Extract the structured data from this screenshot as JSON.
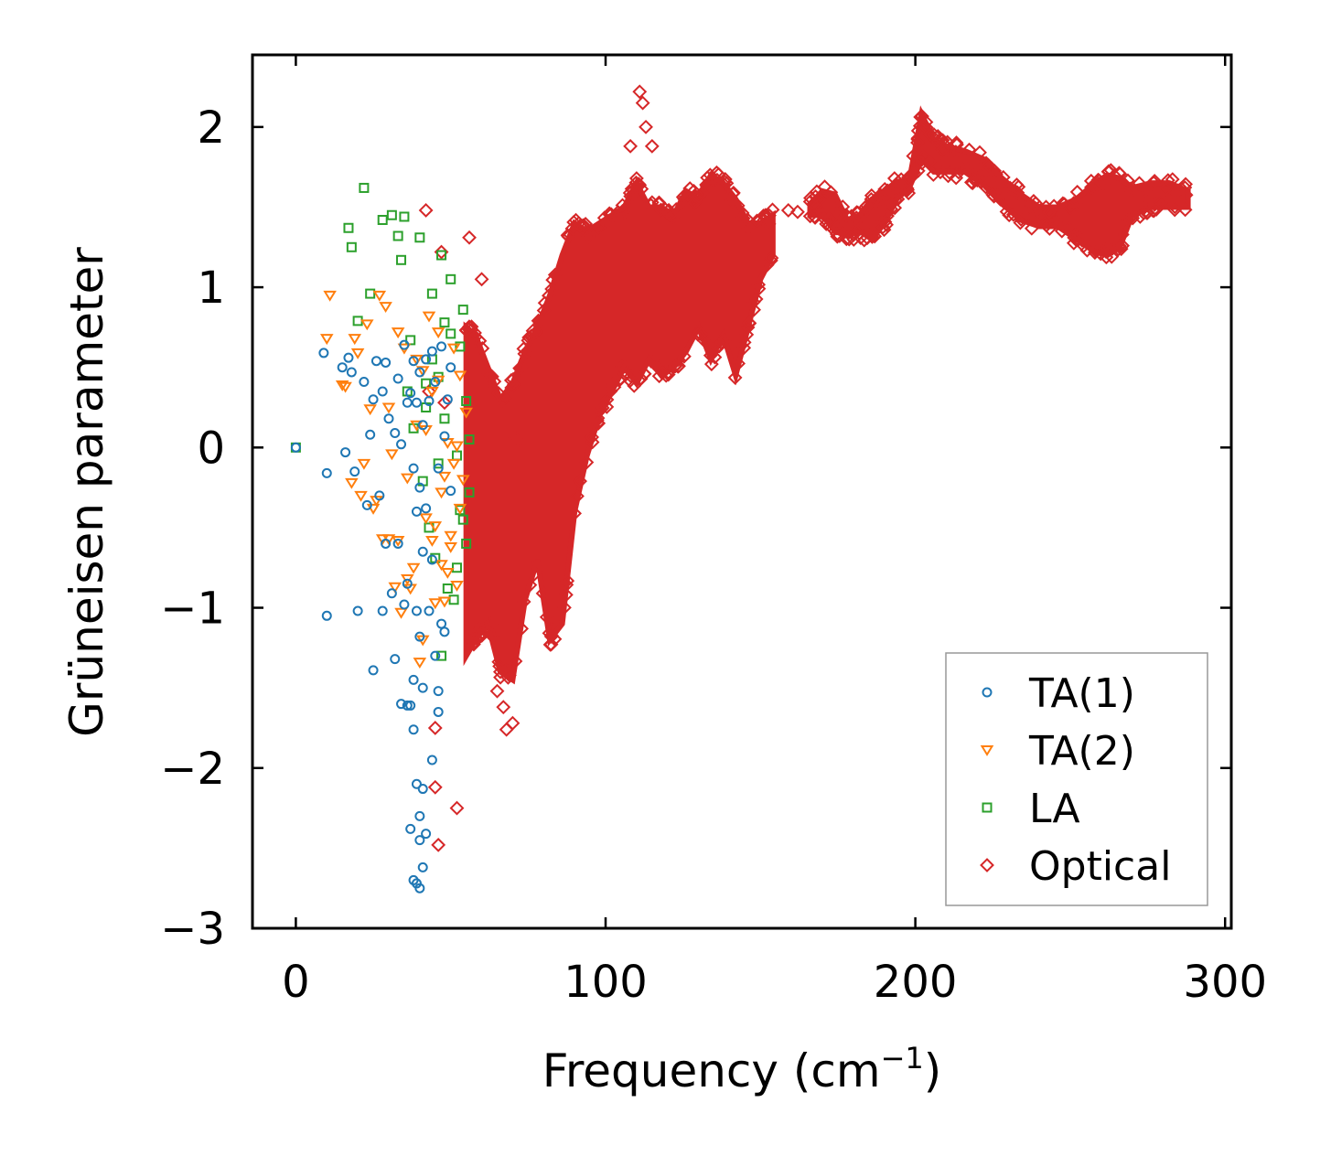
{
  "chart_data": {
    "type": "scatter",
    "title": "",
    "xlabel": "Frequency (cm",
    "xlabel_sup": "−1",
    "xlabel_close": ")",
    "ylabel": "Grüneisen parameter",
    "xlim": [
      -14,
      302
    ],
    "ylim": [
      -3,
      2.45
    ],
    "xticks": [
      0,
      100,
      200,
      300
    ],
    "xtick_labels": [
      "0",
      "100",
      "200",
      "300"
    ],
    "yticks": [
      -3,
      -2,
      -1,
      0,
      1,
      2
    ],
    "ytick_labels": [
      "−3",
      "−2",
      "−1",
      "0",
      "1",
      "2"
    ],
    "grid": false,
    "legend_position": "lower-right",
    "series": [
      {
        "name": "TA(1)",
        "marker": "circle",
        "color": "#1f77b4",
        "x": [
          0,
          9,
          10,
          10,
          15,
          16,
          17,
          18,
          19,
          20,
          22,
          23,
          24,
          25,
          25,
          26,
          27,
          28,
          28,
          29,
          29,
          30,
          31,
          32,
          32,
          33,
          33,
          34,
          34,
          35,
          35,
          36,
          36,
          37,
          37,
          38,
          38,
          38,
          39,
          39,
          39,
          40,
          40,
          40,
          41,
          41,
          41,
          42,
          42,
          43,
          43,
          44,
          44,
          45,
          45,
          46,
          46,
          47,
          47,
          48,
          48,
          49,
          50,
          50,
          38,
          39,
          40,
          40,
          41,
          42,
          37,
          38,
          39,
          40,
          36,
          41,
          44,
          46
        ],
        "y": [
          0,
          0.59,
          -0.16,
          -1.05,
          0.5,
          -0.03,
          0.56,
          0.47,
          -0.15,
          -1.02,
          0.41,
          -0.36,
          0.08,
          -1.39,
          0.3,
          0.54,
          -0.3,
          0.35,
          -1.02,
          -0.6,
          0.53,
          0.18,
          -0.91,
          -1.32,
          0.09,
          -0.6,
          0.43,
          -1.6,
          0.02,
          -0.98,
          0.64,
          -0.85,
          0.28,
          -1.61,
          0.34,
          -1.45,
          -0.13,
          0.54,
          -0.4,
          -1.02,
          0.28,
          -1.18,
          0.47,
          -0.25,
          -0.65,
          0.14,
          -1.5,
          0.55,
          -0.38,
          -1.02,
          0.29,
          -0.7,
          0.6,
          -1.3,
          0.41,
          -0.13,
          -1.65,
          -1.1,
          0.63,
          0.07,
          -1.15,
          0.3,
          -0.27,
          0.5,
          -1.76,
          -2.1,
          -2.3,
          -2.45,
          -2.62,
          -2.41,
          -2.38,
          -2.7,
          -2.72,
          -2.75,
          -1.61,
          -2.13,
          -1.95,
          -1.52
        ]
      },
      {
        "name": "TA(2)",
        "marker": "triangle-down",
        "color": "#ff7f0e",
        "x": [
          10,
          11,
          15,
          16,
          18,
          19,
          20,
          21,
          22,
          23,
          24,
          25,
          26,
          27,
          28,
          29,
          30,
          31,
          32,
          33,
          34,
          35,
          36,
          37,
          38,
          39,
          40,
          41,
          42,
          43,
          44,
          45,
          46,
          47,
          48,
          49,
          50,
          51,
          52,
          53,
          54,
          55,
          30,
          33,
          36,
          39,
          42,
          45,
          48,
          51,
          44,
          47,
          50,
          53,
          41,
          46,
          49,
          52
        ],
        "y": [
          0.68,
          0.95,
          0.39,
          0.38,
          -0.22,
          0.68,
          0.59,
          -0.3,
          -0.1,
          0.77,
          0.24,
          -0.38,
          -0.33,
          0.95,
          -0.57,
          0.88,
          -0.57,
          -0.04,
          -0.87,
          0.72,
          -1.03,
          0.62,
          -0.19,
          -0.88,
          -0.75,
          0.14,
          -1.34,
          0.48,
          -0.44,
          0.82,
          -0.58,
          -0.97,
          0.42,
          -0.73,
          -0.18,
          0.03,
          -0.55,
          0.62,
          -0.86,
          -0.38,
          -0.2,
          0.22,
          0.25,
          -0.58,
          -0.82,
          0.55,
          0.11,
          -0.49,
          -0.96,
          -0.1,
          0.35,
          -0.28,
          -0.62,
          0.45,
          -1.2,
          0.72,
          -0.78,
          0.01
        ]
      },
      {
        "name": "LA",
        "marker": "square",
        "color": "#2ca02c",
        "x": [
          0,
          17,
          18,
          20,
          22,
          24,
          28,
          31,
          33,
          34,
          35,
          37,
          40,
          42,
          44,
          46,
          47,
          48,
          50,
          52,
          53,
          54,
          55,
          56,
          36,
          38,
          41,
          43,
          45,
          47,
          49,
          51,
          53,
          55,
          44,
          46,
          48,
          50,
          52,
          54,
          56,
          42
        ],
        "y": [
          0,
          1.37,
          1.25,
          0.79,
          1.62,
          0.96,
          1.42,
          1.45,
          1.32,
          1.17,
          1.44,
          0.67,
          1.31,
          0.4,
          0.96,
          0.44,
          1.2,
          0.78,
          1.05,
          -0.05,
          0.63,
          0.86,
          0.29,
          -0.28,
          0.35,
          0.12,
          -0.21,
          -0.5,
          -0.69,
          -1.3,
          -0.88,
          -0.95,
          -0.39,
          -0.6,
          0.55,
          -0.1,
          0.18,
          0.71,
          -0.75,
          -0.45,
          0.05,
          0.25
        ]
      },
      {
        "name": "Optical",
        "marker": "diamond",
        "color": "#d62728",
        "x": [
          42,
          45,
          52,
          56,
          60,
          65,
          68,
          70,
          48,
          46,
          47,
          43,
          45,
          55,
          58,
          62,
          66,
          69,
          72,
          63,
          67,
          111,
          112,
          113,
          108,
          115,
          162,
          159
        ],
        "y": [
          1.48,
          -2.12,
          -2.25,
          1.31,
          1.05,
          -1.52,
          -1.76,
          -1.72,
          0.28,
          -2.48,
          1.22,
          0.35,
          -1.75,
          0.73,
          0.69,
          0.42,
          -1.4,
          0.1,
          0.05,
          -1.1,
          -1.62,
          2.22,
          2.15,
          2.0,
          1.88,
          1.88,
          1.47,
          1.48
        ],
        "bulk_envelopes": [
          {
            "x": [
              55,
              58,
              62,
              66,
              70,
              74,
              78,
              82,
              86,
              90,
              94,
              98,
              102,
              106,
              110,
              114,
              118,
              122,
              126,
              130,
              134,
              138,
              142,
              146,
              150,
              154
            ],
            "y_low": [
              -1.3,
              -1.2,
              -1.1,
              -1.4,
              -1.45,
              -0.95,
              -0.7,
              -1.2,
              -1.1,
              -0.4,
              -0.05,
              0.2,
              0.35,
              0.5,
              0.4,
              0.55,
              0.45,
              0.5,
              0.6,
              0.75,
              0.55,
              0.7,
              0.45,
              0.75,
              1.05,
              1.2
            ],
            "y_high": [
              0.75,
              0.7,
              0.5,
              0.3,
              0.4,
              0.6,
              0.75,
              0.95,
              1.2,
              1.4,
              1.35,
              1.4,
              1.45,
              1.5,
              1.65,
              1.5,
              1.5,
              1.45,
              1.6,
              1.55,
              1.7,
              1.65,
              1.55,
              1.4,
              1.4,
              1.45
            ]
          },
          {
            "x": [
              166,
              170,
              174,
              178,
              182,
              186,
              190,
              194,
              198,
              202,
              206,
              210,
              216,
              222,
              228,
              234,
              240,
              246,
              252,
              258,
              262,
              266,
              270,
              276,
              282,
              288
            ],
            "y_low": [
              1.45,
              1.45,
              1.35,
              1.32,
              1.35,
              1.3,
              1.4,
              1.55,
              1.62,
              1.8,
              1.72,
              1.72,
              1.72,
              1.64,
              1.52,
              1.42,
              1.38,
              1.38,
              1.3,
              1.22,
              1.2,
              1.25,
              1.45,
              1.5,
              1.5,
              1.5
            ],
            "y_high": [
              1.52,
              1.6,
              1.58,
              1.42,
              1.45,
              1.55,
              1.6,
              1.66,
              1.66,
              2.08,
              1.92,
              1.88,
              1.85,
              1.8,
              1.68,
              1.58,
              1.5,
              1.5,
              1.55,
              1.65,
              1.7,
              1.68,
              1.62,
              1.65,
              1.65,
              1.6
            ]
          }
        ]
      }
    ]
  }
}
